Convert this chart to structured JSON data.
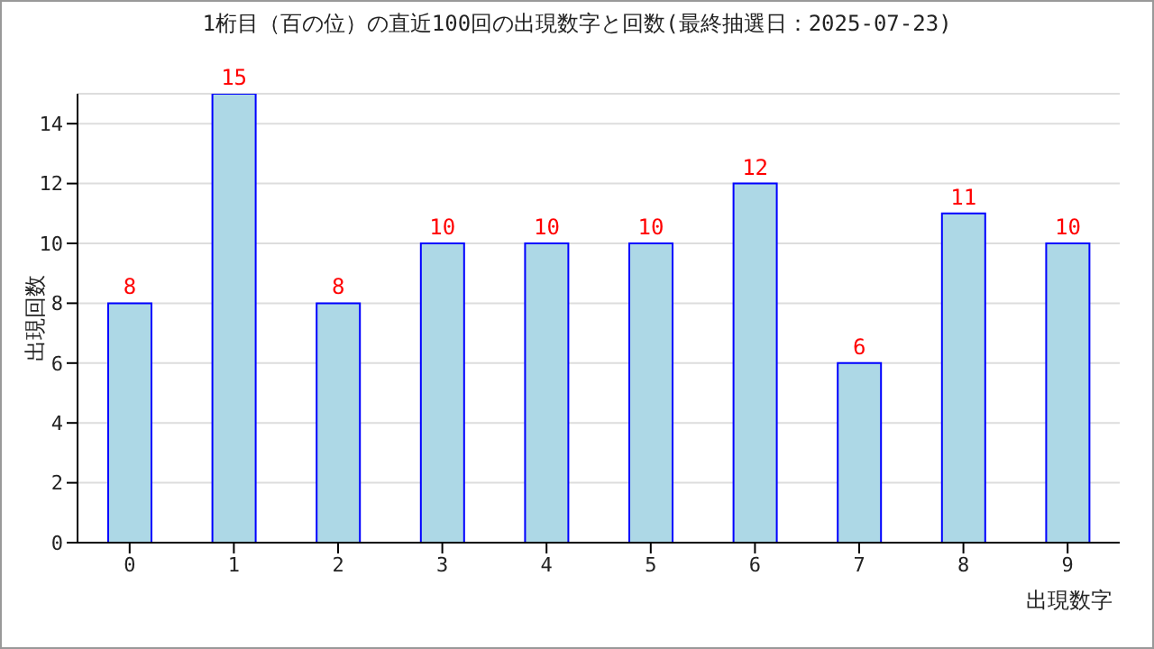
{
  "chart_data": {
    "type": "bar",
    "title": "1桁目（百の位）の直近100回の出現数字と回数(最終抽選日：2025-07-23)",
    "xlabel": "出現数字",
    "ylabel": "出現回数",
    "categories": [
      "0",
      "1",
      "2",
      "3",
      "4",
      "5",
      "6",
      "7",
      "8",
      "9"
    ],
    "values": [
      8,
      15,
      8,
      10,
      10,
      10,
      12,
      6,
      11,
      10
    ],
    "color": "#add8e6",
    "ylim": [
      0,
      15
    ],
    "yticks": [
      0,
      2,
      4,
      6,
      8,
      10,
      12,
      14
    ],
    "grid": "y",
    "data_labels": true
  }
}
